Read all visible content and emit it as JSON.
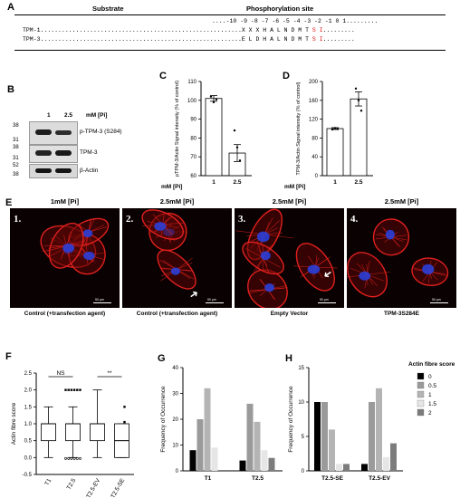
{
  "panels": {
    "A": "A",
    "B": "B",
    "C": "C",
    "D": "D",
    "E": "E",
    "F": "F",
    "G": "G",
    "H": "H"
  },
  "panel_a": {
    "header_substrate": "Substrate",
    "header_site": "Phosphorylation site",
    "positions": "-10 -9 -8 -7 -6 -5 -4 -3 -2 -1 0 1",
    "rows": [
      {
        "name": "TPM-1",
        "seq": "X X X H A L N D M T",
        "s": "S",
        "i": "I"
      },
      {
        "name": "TPM-3",
        "seq": "E L D H A L N D M T",
        "s": "S",
        "i": "I"
      }
    ]
  },
  "panel_b": {
    "lanes": [
      "1",
      "2.5"
    ],
    "condition_label": "mM [Pi]",
    "mw_markers": [
      "38",
      "31",
      "38",
      "31",
      "52",
      "38"
    ],
    "bands": [
      "p-TPM-3 (S284)",
      "TPM-3",
      "β-Actin"
    ]
  },
  "panel_e": {
    "titles": [
      "1mM [Pi]",
      "2.5mM [Pi]",
      "2.5mM [Pi]",
      "2.5mM [Pi]"
    ],
    "numbers": [
      "1.",
      "2.",
      "3.",
      "4."
    ],
    "captions": [
      "Control (+transfection agent)",
      "Control (+transfection agent)",
      "Empty Vector",
      "TPM-3S284E"
    ],
    "scale_bar": "50 μm",
    "colors": {
      "background": "#0a0202",
      "actin": "#e0201e",
      "nucleus": "#2a3fd8"
    }
  },
  "chart_data": [
    {
      "panel": "C",
      "type": "bar",
      "categories": [
        "1",
        "2.5"
      ],
      "values": [
        101,
        72
      ],
      "errors": [
        1.5,
        4.5
      ],
      "points": [
        [
          102,
          99,
          100.5
        ],
        [
          84,
          75,
          68
        ]
      ],
      "xlabel": "mM [Pi]",
      "ylabel": "pTPM-3/Actin Signal intensity (% of control)",
      "ylim": [
        60,
        110
      ],
      "yticks": [
        "60",
        "70",
        "80",
        "90",
        "100",
        "110"
      ]
    },
    {
      "panel": "D",
      "type": "bar",
      "categories": [
        "1",
        "2.5"
      ],
      "values": [
        100,
        163
      ],
      "errors": [
        2,
        15
      ],
      "points": [
        [
          98,
          101,
          99
        ],
        [
          185,
          160,
          138
        ]
      ],
      "xlabel": "mM [Pi]",
      "ylabel": "TPM-3/Actin Signal intensity (% of control)",
      "ylim": [
        0,
        200
      ],
      "yticks": [
        "0",
        "40",
        "80",
        "120",
        "160",
        "200"
      ]
    },
    {
      "panel": "F",
      "type": "box",
      "categories": [
        "T1",
        "T2.5",
        "T2.5-EV",
        "T2.5-SE"
      ],
      "stats": [
        {
          "min": 0,
          "q1": 0.5,
          "median": 1,
          "q3": 1,
          "max": 1.5,
          "outliers": []
        },
        {
          "min": 0,
          "q1": 0.5,
          "median": 1,
          "q3": 1,
          "max": 1.5,
          "outliers": [
            2,
            0
          ]
        },
        {
          "min": 0,
          "q1": 0.5,
          "median": 1,
          "q3": 1,
          "max": 2,
          "outliers": []
        },
        {
          "min": 0,
          "q1": 0,
          "median": 0.5,
          "q3": 1,
          "max": 1,
          "outliers": [
            1.5,
            1.05
          ]
        }
      ],
      "ylabel": "Actin fibre score",
      "ylim": [
        -0.5,
        2.5
      ],
      "yticks": [
        "-0.5",
        "0.0",
        "0.5",
        "1.0",
        "1.5",
        "2.0",
        "2.5"
      ],
      "significance": [
        {
          "label": "NS",
          "from": 0,
          "to": 1
        },
        {
          "label": "**",
          "from": 2,
          "to": 3
        }
      ]
    },
    {
      "panel": "G",
      "type": "bar",
      "categories": [
        "T1",
        "T2.5"
      ],
      "series": [
        {
          "name": "0",
          "values": [
            8,
            4
          ]
        },
        {
          "name": "0.5",
          "values": [
            20,
            26
          ]
        },
        {
          "name": "1",
          "values": [
            32,
            19
          ]
        },
        {
          "name": "1.5",
          "values": [
            9,
            8
          ]
        },
        {
          "name": "2",
          "values": [
            0,
            5
          ]
        }
      ],
      "ylabel": "Frequency of Occurrence",
      "ylim": [
        0,
        40
      ],
      "yticks": [
        "0",
        "10",
        "20",
        "30",
        "40"
      ]
    },
    {
      "panel": "H",
      "type": "bar",
      "categories": [
        "T2.5-SE",
        "T2.5-EV"
      ],
      "series": [
        {
          "name": "0",
          "values": [
            10,
            1
          ]
        },
        {
          "name": "0.5",
          "values": [
            10,
            10
          ]
        },
        {
          "name": "1",
          "values": [
            6,
            12
          ]
        },
        {
          "name": "1.5",
          "values": [
            1,
            2
          ]
        },
        {
          "name": "2",
          "values": [
            1,
            4
          ]
        }
      ],
      "ylabel": "Frequency of Occurrence",
      "ylim": [
        0,
        15
      ],
      "yticks": [
        "0",
        "5",
        "10",
        "15"
      ],
      "legend_title": "Actin fibre score",
      "legend_position": "right",
      "series_colors": [
        "#000000",
        "#9a9a9a",
        "#b4b4b4",
        "#e6e6e6",
        "#7c7c7c"
      ]
    }
  ]
}
